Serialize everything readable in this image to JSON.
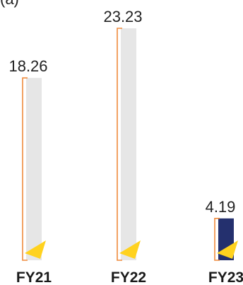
{
  "chart_data": {
    "type": "bar",
    "title": "",
    "categories": [
      "FY21",
      "FY22",
      "FY23"
    ],
    "values": [
      18.26,
      23.23,
      4.19
    ],
    "value_labels": [
      "18.26",
      "23.23",
      "4.19"
    ],
    "ylim": [
      0,
      23.23
    ],
    "grid": false,
    "legend": "none",
    "colors": {
      "bar_default": "#e6e6e6",
      "bar_highlight": "#24306e",
      "bracket": "#ef8a3c",
      "marker": "#ffd21f"
    },
    "highlight_index": 2
  },
  "corner_text": "(a)"
}
